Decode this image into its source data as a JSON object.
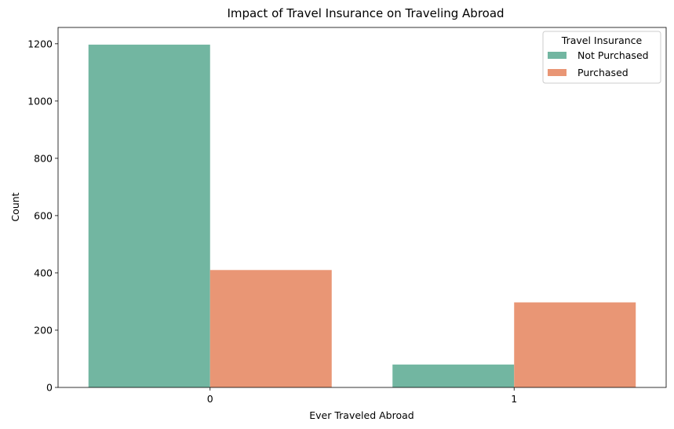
{
  "chart_data": {
    "type": "bar",
    "title": "Impact of Travel Insurance on Traveling Abroad",
    "xlabel": "Ever Traveled Abroad",
    "ylabel": "Count",
    "categories": [
      "0",
      "1"
    ],
    "series": [
      {
        "name": "Not Purchased",
        "values": [
          1197,
          80
        ],
        "color": "#72b6a1"
      },
      {
        "name": "Purchased",
        "values": [
          410,
          297
        ],
        "color": "#e99675"
      }
    ],
    "ylim": [
      0,
      1257
    ],
    "yticks": [
      0,
      200,
      400,
      600,
      800,
      1000,
      1200
    ],
    "legend": {
      "title": "Travel Insurance",
      "placement": "top-right"
    },
    "grid": false
  }
}
